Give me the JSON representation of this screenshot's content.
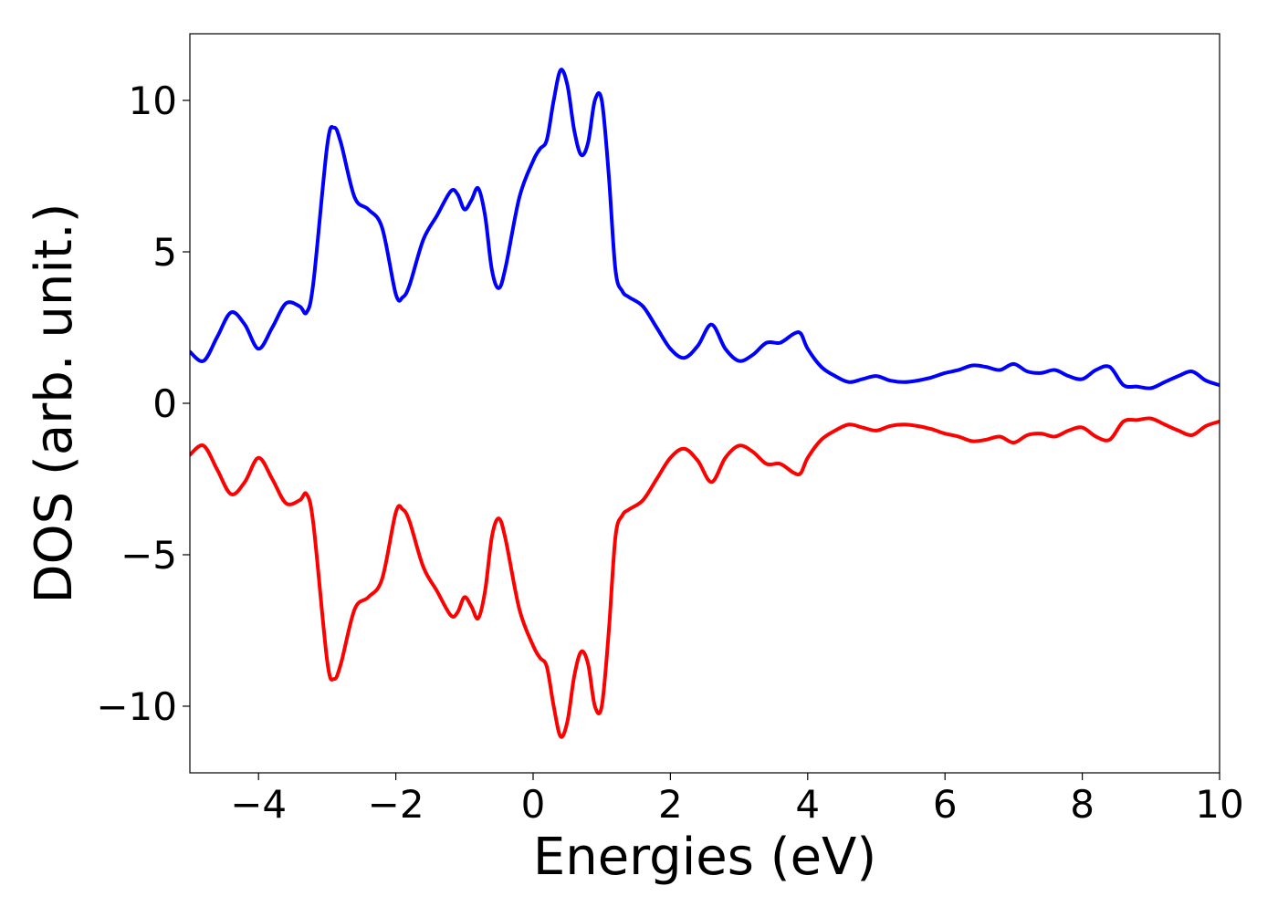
{
  "chart_data": {
    "type": "line",
    "title": "",
    "xlabel": "Energies (eV)",
    "ylabel": "DOS (arb. unit.)",
    "xlim": [
      -5,
      10
    ],
    "ylim": [
      -12.2,
      12.2
    ],
    "xticks": [
      -4,
      -2,
      0,
      2,
      4,
      6,
      8,
      10
    ],
    "xtick_labels": [
      "−4",
      "−2",
      "0",
      "2",
      "4",
      "6",
      "8",
      "10"
    ],
    "yticks": [
      -10,
      -5,
      0,
      5,
      10
    ],
    "ytick_labels": [
      "−10",
      "−5",
      "0",
      "5",
      "10"
    ],
    "grid": false,
    "legend": "none",
    "series": [
      {
        "color": "#0000ff",
        "x": [
          -5.0,
          -4.8,
          -4.6,
          -4.4,
          -4.2,
          -4.0,
          -3.8,
          -3.6,
          -3.4,
          -3.3,
          -3.2,
          -3.0,
          -2.9,
          -2.8,
          -2.6,
          -2.4,
          -2.2,
          -2.0,
          -1.9,
          -1.8,
          -1.6,
          -1.4,
          -1.2,
          -1.1,
          -1.0,
          -0.9,
          -0.8,
          -0.7,
          -0.6,
          -0.5,
          -0.4,
          -0.2,
          0.0,
          0.1,
          0.2,
          0.3,
          0.4,
          0.5,
          0.6,
          0.7,
          0.8,
          0.9,
          1.0,
          1.1,
          1.2,
          1.3,
          1.4,
          1.6,
          1.8,
          2.0,
          2.2,
          2.4,
          2.6,
          2.8,
          3.0,
          3.2,
          3.4,
          3.6,
          3.8,
          3.9,
          4.0,
          4.2,
          4.4,
          4.6,
          4.8,
          5.0,
          5.2,
          5.4,
          5.6,
          5.8,
          6.0,
          6.2,
          6.4,
          6.6,
          6.8,
          7.0,
          7.2,
          7.4,
          7.6,
          7.8,
          8.0,
          8.2,
          8.4,
          8.6,
          8.8,
          9.0,
          9.2,
          9.4,
          9.6,
          9.8,
          10.0
        ],
        "y": [
          1.7,
          1.4,
          2.2,
          3.0,
          2.6,
          1.8,
          2.5,
          3.3,
          3.2,
          3.0,
          4.0,
          8.5,
          9.1,
          8.6,
          6.8,
          6.4,
          5.8,
          3.6,
          3.5,
          3.9,
          5.4,
          6.2,
          7.0,
          6.9,
          6.4,
          6.7,
          7.1,
          6.2,
          4.4,
          3.8,
          4.5,
          6.8,
          8.0,
          8.4,
          8.7,
          10.0,
          11.0,
          10.5,
          9.0,
          8.2,
          8.6,
          10.0,
          10.0,
          7.6,
          4.4,
          3.7,
          3.5,
          3.2,
          2.5,
          1.8,
          1.5,
          1.9,
          2.6,
          1.8,
          1.4,
          1.6,
          2.0,
          2.0,
          2.3,
          2.3,
          1.8,
          1.2,
          0.9,
          0.7,
          0.8,
          0.9,
          0.75,
          0.7,
          0.75,
          0.85,
          1.0,
          1.1,
          1.25,
          1.2,
          1.1,
          1.3,
          1.05,
          1.0,
          1.1,
          0.9,
          0.8,
          1.1,
          1.2,
          0.6,
          0.55,
          0.5,
          0.7,
          0.9,
          1.05,
          0.75,
          0.6
        ]
      },
      {
        "color": "#ff0000",
        "x": [
          -5.0,
          -4.8,
          -4.6,
          -4.4,
          -4.2,
          -4.0,
          -3.8,
          -3.6,
          -3.4,
          -3.3,
          -3.2,
          -3.0,
          -2.9,
          -2.8,
          -2.6,
          -2.4,
          -2.2,
          -2.0,
          -1.9,
          -1.8,
          -1.6,
          -1.4,
          -1.2,
          -1.1,
          -1.0,
          -0.9,
          -0.8,
          -0.7,
          -0.6,
          -0.5,
          -0.4,
          -0.2,
          0.0,
          0.1,
          0.2,
          0.3,
          0.4,
          0.5,
          0.6,
          0.7,
          0.8,
          0.9,
          1.0,
          1.1,
          1.2,
          1.3,
          1.4,
          1.6,
          1.8,
          2.0,
          2.2,
          2.4,
          2.6,
          2.8,
          3.0,
          3.2,
          3.4,
          3.6,
          3.8,
          3.9,
          4.0,
          4.2,
          4.4,
          4.6,
          4.8,
          5.0,
          5.2,
          5.4,
          5.6,
          5.8,
          6.0,
          6.2,
          6.4,
          6.6,
          6.8,
          7.0,
          7.2,
          7.4,
          7.6,
          7.8,
          8.0,
          8.2,
          8.4,
          8.6,
          8.8,
          9.0,
          9.2,
          9.4,
          9.6,
          9.8,
          10.0
        ],
        "y": [
          -1.7,
          -1.4,
          -2.2,
          -3.0,
          -2.6,
          -1.8,
          -2.5,
          -3.3,
          -3.2,
          -3.0,
          -4.0,
          -8.5,
          -9.1,
          -8.6,
          -6.8,
          -6.4,
          -5.8,
          -3.6,
          -3.5,
          -3.9,
          -5.4,
          -6.2,
          -7.0,
          -6.9,
          -6.4,
          -6.7,
          -7.1,
          -6.2,
          -4.4,
          -3.8,
          -4.5,
          -6.8,
          -8.0,
          -8.4,
          -8.7,
          -10.0,
          -11.0,
          -10.5,
          -9.0,
          -8.2,
          -8.6,
          -10.0,
          -10.0,
          -7.6,
          -4.4,
          -3.7,
          -3.5,
          -3.2,
          -2.5,
          -1.8,
          -1.5,
          -1.9,
          -2.6,
          -1.8,
          -1.4,
          -1.6,
          -2.0,
          -2.0,
          -2.3,
          -2.3,
          -1.8,
          -1.2,
          -0.9,
          -0.7,
          -0.8,
          -0.9,
          -0.75,
          -0.7,
          -0.75,
          -0.85,
          -1.0,
          -1.1,
          -1.25,
          -1.2,
          -1.1,
          -1.3,
          -1.05,
          -1.0,
          -1.1,
          -0.9,
          -0.8,
          -1.1,
          -1.2,
          -0.6,
          -0.55,
          -0.5,
          -0.7,
          -0.9,
          -1.05,
          -0.75,
          -0.6
        ]
      }
    ]
  }
}
